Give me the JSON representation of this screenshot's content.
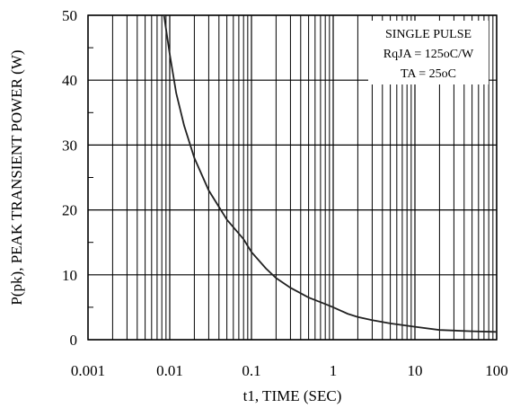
{
  "chart_data": {
    "type": "line",
    "title": "",
    "xlabel": "t1, TIME (SEC)",
    "ylabel": "P(pk), PEAK TRANSIENT POWER (W)",
    "x_scale": "log",
    "xlim": [
      0.001,
      100
    ],
    "ylim": [
      0,
      50
    ],
    "grid": true,
    "x_ticks": [
      0.001,
      0.01,
      0.1,
      1,
      10,
      100
    ],
    "x_tick_labels": [
      "0.001",
      "0.01",
      "0.1",
      "1",
      "10",
      "100"
    ],
    "y_ticks": [
      0,
      10,
      20,
      30,
      40,
      50
    ],
    "y_tick_labels": [
      "0",
      "10",
      "20",
      "30",
      "40",
      "50"
    ],
    "annotation_lines": [
      "SINGLE PULSE",
      "RqJA = 125oC/W",
      "TA = 25oC"
    ],
    "legend_position": "top-right",
    "series": [
      {
        "x": [
          0.0085,
          0.01,
          0.012,
          0.015,
          0.02,
          0.03,
          0.05,
          0.08,
          0.1,
          0.15,
          0.2,
          0.3,
          0.5,
          0.8,
          1,
          1.5,
          2,
          3,
          5,
          10,
          20,
          50,
          100
        ],
        "y": [
          50,
          44,
          38,
          33,
          28,
          23,
          18.5,
          15.5,
          13.5,
          11,
          9.5,
          8,
          6.5,
          5.5,
          5,
          4,
          3.5,
          3,
          2.5,
          2,
          1.5,
          1.3,
          1.2
        ]
      }
    ]
  }
}
